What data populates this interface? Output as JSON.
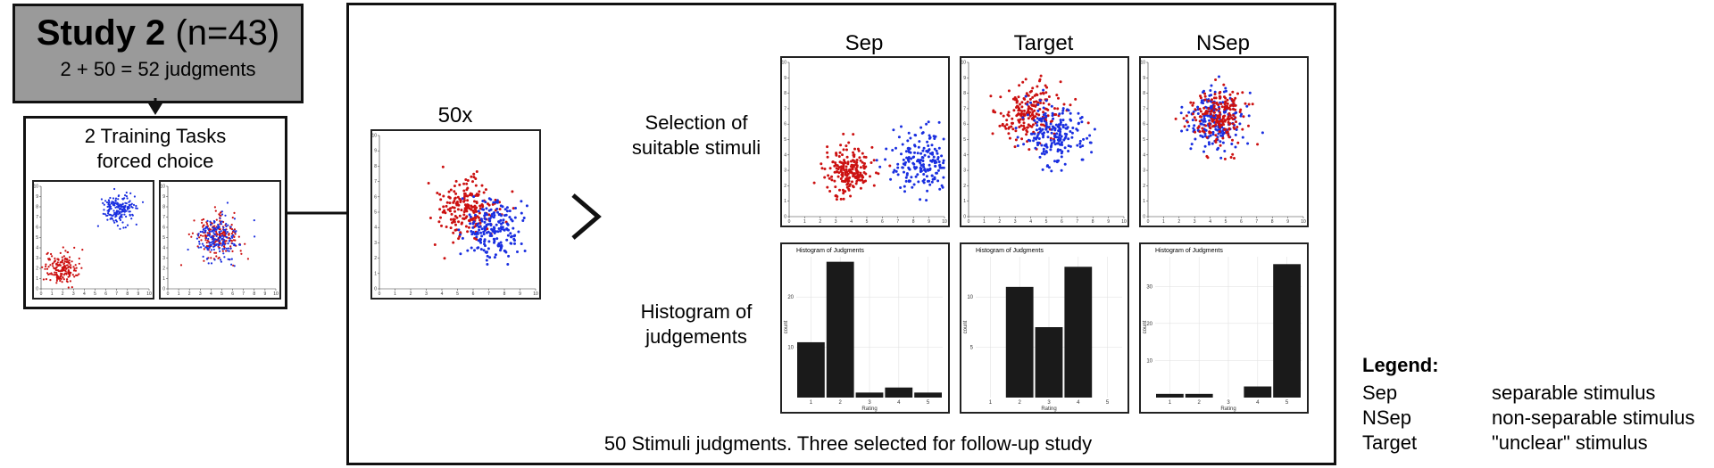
{
  "study": {
    "title_bold": "Study 2",
    "title_rest": " (n=43)",
    "subtitle": "2 + 50 = 52 judgments"
  },
  "training": {
    "line1": "2 Training Tasks",
    "line2": "forced choice"
  },
  "main": {
    "center_label": "50x",
    "selection_label_1": "Selection of",
    "selection_label_2": "suitable stimuli",
    "histogram_label_1": "Histogram of",
    "histogram_label_2": "judgements",
    "columns": [
      "Sep",
      "Target",
      "NSep"
    ],
    "footer": "50 Stimuli judgments. Three selected for follow-up study",
    "histogram_title": "Histogram of Judgments",
    "histogram_xlabel": "Rating",
    "histogram_ylabel": "count"
  },
  "colors": {
    "red": "#cc1111",
    "blue": "#1a2fe0",
    "bar": "#1a1a1a",
    "study_box": "#9a9a9a"
  },
  "chart_data": [
    {
      "type": "scatter",
      "id": "train-sep",
      "xlim": [
        0,
        10
      ],
      "ylim": [
        0,
        10
      ],
      "series": [
        {
          "color": "red",
          "center": [
            1.8,
            2.0
          ],
          "spread": 0.75,
          "count": 180
        },
        {
          "color": "blue",
          "center": [
            7.2,
            7.8
          ],
          "spread": 0.75,
          "count": 180
        }
      ]
    },
    {
      "type": "scatter",
      "id": "train-nsep",
      "xlim": [
        0,
        10
      ],
      "ylim": [
        0,
        10
      ],
      "series": [
        {
          "color": "red",
          "center": [
            4.5,
            5.0
          ],
          "spread": 1.0,
          "count": 180
        },
        {
          "color": "blue",
          "center": [
            4.6,
            5.0
          ],
          "spread": 1.0,
          "count": 180
        }
      ]
    },
    {
      "type": "scatter",
      "id": "center",
      "xlim": [
        0,
        10
      ],
      "ylim": [
        0,
        10
      ],
      "series": [
        {
          "color": "red",
          "center": [
            5.6,
            5.3
          ],
          "spread": 0.95,
          "count": 200
        },
        {
          "color": "blue",
          "center": [
            7.3,
            3.9
          ],
          "spread": 0.95,
          "count": 200
        }
      ]
    },
    {
      "type": "scatter",
      "id": "sep",
      "xlim": [
        0,
        10
      ],
      "ylim": [
        0,
        10
      ],
      "series": [
        {
          "color": "red",
          "center": [
            3.8,
            3.0
          ],
          "spread": 0.8,
          "count": 200
        },
        {
          "color": "blue",
          "center": [
            8.5,
            3.6
          ],
          "spread": 1.0,
          "count": 200
        }
      ]
    },
    {
      "type": "scatter",
      "id": "target",
      "xlim": [
        0,
        10
      ],
      "ylim": [
        0,
        10
      ],
      "series": [
        {
          "color": "red",
          "center": [
            3.8,
            6.6
          ],
          "spread": 1.0,
          "count": 200
        },
        {
          "color": "blue",
          "center": [
            5.5,
            5.4
          ],
          "spread": 1.0,
          "count": 200
        }
      ]
    },
    {
      "type": "scatter",
      "id": "nsep",
      "xlim": [
        0,
        10
      ],
      "ylim": [
        0,
        10
      ],
      "series": [
        {
          "color": "blue",
          "center": [
            4.3,
            6.3
          ],
          "spread": 0.95,
          "count": 200
        },
        {
          "color": "red",
          "center": [
            4.6,
            6.5
          ],
          "spread": 0.95,
          "count": 200
        }
      ]
    },
    {
      "type": "bar",
      "id": "hist-sep",
      "title": "Histogram of Judgments",
      "xlabel": "Rating",
      "ylabel": "count",
      "categories": [
        "1",
        "2",
        "3",
        "4",
        "5"
      ],
      "values": [
        11,
        27,
        1,
        2,
        1
      ],
      "ylim": [
        0,
        28
      ],
      "yticks": [
        10,
        20
      ]
    },
    {
      "type": "bar",
      "id": "hist-target",
      "title": "Histogram of Judgments",
      "xlabel": "Rating",
      "ylabel": "count",
      "categories": [
        "1",
        "2",
        "3",
        "4",
        "5"
      ],
      "values": [
        0,
        11,
        7,
        13,
        0
      ],
      "ylim": [
        0,
        14
      ],
      "yticks": [
        5,
        10
      ]
    },
    {
      "type": "bar",
      "id": "hist-nsep",
      "title": "Histogram of Judgments",
      "xlabel": "Rating",
      "ylabel": "count",
      "categories": [
        "1",
        "2",
        "3",
        "4",
        "5"
      ],
      "values": [
        1,
        1,
        0,
        3,
        36
      ],
      "ylim": [
        0,
        38
      ],
      "yticks": [
        10,
        20,
        30
      ]
    }
  ],
  "legend": {
    "title": "Legend:",
    "items": [
      {
        "key": "Sep",
        "desc": "separable stimulus"
      },
      {
        "key": "NSep",
        "desc": "non-separable stimulus"
      },
      {
        "key": "Target",
        "desc": "\"unclear\" stimulus"
      }
    ]
  }
}
